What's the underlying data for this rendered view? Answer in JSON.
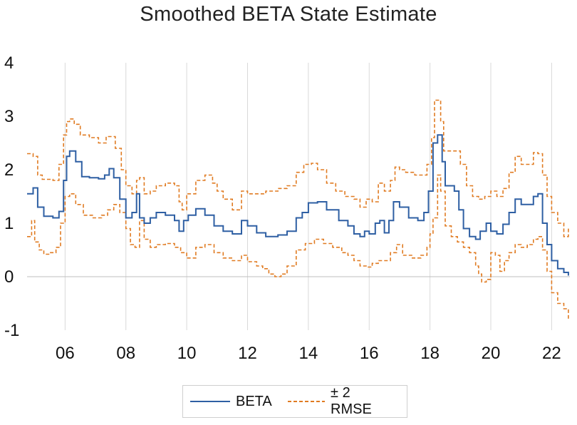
{
  "chart_data": {
    "type": "line",
    "title": "Smoothed BETA State Estimate",
    "xlabel": "",
    "ylabel": "",
    "xlim": [
      2004.75,
      2022.6
    ],
    "ylim": [
      -1,
      4
    ],
    "yticks": [
      "4",
      "3",
      "2",
      "1",
      "0",
      "-1"
    ],
    "xticks": [
      "06",
      "08",
      "10",
      "12",
      "14",
      "16",
      "18",
      "20",
      "22"
    ],
    "xtick_values": [
      2006,
      2008,
      2010,
      2012,
      2014,
      2016,
      2018,
      2020,
      2022
    ],
    "grid": "vertical",
    "legend": "bottom",
    "colors": {
      "beta": "#2e5fa3",
      "rmse": "#e07b22"
    },
    "series": [
      {
        "name": "BETA",
        "style": "solid",
        "x": [
          2004.75,
          2004.95,
          2005.1,
          2005.3,
          2005.6,
          2005.8,
          2005.95,
          2006.05,
          2006.15,
          2006.35,
          2006.55,
          2006.8,
          2007.1,
          2007.3,
          2007.45,
          2007.6,
          2007.8,
          2008.0,
          2008.2,
          2008.35,
          2008.45,
          2008.6,
          2008.8,
          2009.0,
          2009.3,
          2009.6,
          2009.75,
          2009.9,
          2010.05,
          2010.3,
          2010.6,
          2010.9,
          2011.2,
          2011.5,
          2011.8,
          2012.0,
          2012.3,
          2012.6,
          2013.0,
          2013.3,
          2013.6,
          2013.8,
          2014.0,
          2014.3,
          2014.6,
          2015.0,
          2015.3,
          2015.5,
          2015.7,
          2015.85,
          2016.0,
          2016.2,
          2016.35,
          2016.5,
          2016.65,
          2016.8,
          2017.0,
          2017.3,
          2017.6,
          2017.8,
          2017.95,
          2018.1,
          2018.25,
          2018.4,
          2018.5,
          2018.6,
          2018.8,
          2018.95,
          2019.1,
          2019.3,
          2019.5,
          2019.65,
          2019.85,
          2020.0,
          2020.2,
          2020.4,
          2020.6,
          2020.8,
          2021.0,
          2021.2,
          2021.4,
          2021.55,
          2021.7,
          2021.85,
          2022.0,
          2022.2,
          2022.4,
          2022.55
        ],
        "values": [
          1.55,
          1.66,
          1.3,
          1.13,
          1.1,
          1.22,
          1.8,
          2.25,
          2.35,
          2.15,
          1.87,
          1.85,
          1.83,
          1.9,
          2.02,
          1.85,
          1.45,
          1.1,
          1.2,
          1.55,
          1.1,
          1.0,
          1.1,
          1.2,
          1.15,
          1.05,
          0.85,
          1.05,
          1.15,
          1.27,
          1.15,
          0.95,
          0.85,
          0.8,
          1.05,
          0.95,
          0.82,
          0.75,
          0.78,
          0.85,
          1.1,
          1.2,
          1.38,
          1.4,
          1.25,
          1.05,
          0.95,
          0.8,
          0.75,
          0.85,
          0.8,
          1.0,
          1.05,
          0.82,
          1.05,
          1.4,
          1.3,
          1.1,
          1.05,
          1.2,
          1.6,
          2.5,
          2.65,
          2.15,
          1.7,
          1.7,
          1.6,
          1.25,
          0.9,
          0.75,
          0.7,
          0.85,
          1.0,
          0.85,
          0.8,
          0.98,
          1.2,
          1.45,
          1.35,
          1.35,
          1.5,
          1.55,
          1.0,
          0.6,
          0.3,
          0.15,
          0.08,
          0.02
        ]
      },
      {
        "name": "± 2 RMSE",
        "style": "dashed",
        "upper": {
          "x": [
            2004.75,
            2004.95,
            2005.1,
            2005.25,
            2005.4,
            2005.6,
            2005.8,
            2005.95,
            2006.05,
            2006.15,
            2006.3,
            2006.5,
            2006.8,
            2007.1,
            2007.35,
            2007.5,
            2007.65,
            2007.85,
            2008.0,
            2008.2,
            2008.35,
            2008.45,
            2008.6,
            2008.8,
            2009.0,
            2009.3,
            2009.6,
            2009.75,
            2009.85,
            2010.0,
            2010.3,
            2010.6,
            2010.85,
            2011.0,
            2011.2,
            2011.5,
            2011.8,
            2012.0,
            2012.3,
            2012.6,
            2013.0,
            2013.3,
            2013.6,
            2013.85,
            2014.1,
            2014.3,
            2014.6,
            2014.9,
            2015.2,
            2015.5,
            2015.7,
            2015.9,
            2016.1,
            2016.3,
            2016.5,
            2016.7,
            2016.85,
            2017.0,
            2017.2,
            2017.5,
            2017.7,
            2017.9,
            2018.05,
            2018.15,
            2018.25,
            2018.35,
            2018.45,
            2018.6,
            2018.8,
            2019.0,
            2019.2,
            2019.4,
            2019.6,
            2019.8,
            2020.0,
            2020.2,
            2020.4,
            2020.6,
            2020.8,
            2021.0,
            2021.2,
            2021.4,
            2021.55,
            2021.7,
            2021.85,
            2022.0,
            2022.2,
            2022.4,
            2022.55
          ],
          "values": [
            2.3,
            2.25,
            1.9,
            1.82,
            1.82,
            1.8,
            2.1,
            2.65,
            2.9,
            2.95,
            2.85,
            2.65,
            2.6,
            2.5,
            2.62,
            2.62,
            2.4,
            2.0,
            1.7,
            1.55,
            1.8,
            1.85,
            1.55,
            1.6,
            1.7,
            1.75,
            1.7,
            1.4,
            1.25,
            1.55,
            1.8,
            1.9,
            1.75,
            1.6,
            1.45,
            1.25,
            1.6,
            1.55,
            1.55,
            1.6,
            1.65,
            1.7,
            1.95,
            2.1,
            2.12,
            2.0,
            1.75,
            1.6,
            1.5,
            1.45,
            1.3,
            1.45,
            1.4,
            1.75,
            1.6,
            1.8,
            2.05,
            2.0,
            1.95,
            1.9,
            1.9,
            2.1,
            2.6,
            3.3,
            3.3,
            2.9,
            2.35,
            2.35,
            2.35,
            2.1,
            1.7,
            1.5,
            1.45,
            1.5,
            1.6,
            1.5,
            1.65,
            1.95,
            2.25,
            2.1,
            2.1,
            2.32,
            2.3,
            1.9,
            1.5,
            1.2,
            1.0,
            0.75,
            0.9
          ]
        },
        "lower": {
          "x": [
            2004.75,
            2004.9,
            2005.0,
            2005.15,
            2005.3,
            2005.5,
            2005.7,
            2005.85,
            2006.0,
            2006.15,
            2006.35,
            2006.6,
            2006.9,
            2007.2,
            2007.4,
            2007.6,
            2007.8,
            2008.0,
            2008.15,
            2008.3,
            2008.45,
            2008.6,
            2008.8,
            2009.0,
            2009.3,
            2009.6,
            2009.8,
            2010.0,
            2010.3,
            2010.6,
            2010.9,
            2011.2,
            2011.5,
            2011.8,
            2012.0,
            2012.3,
            2012.5,
            2012.7,
            2012.9,
            2013.1,
            2013.3,
            2013.6,
            2013.9,
            2014.2,
            2014.5,
            2014.8,
            2015.1,
            2015.3,
            2015.5,
            2015.7,
            2015.9,
            2016.1,
            2016.3,
            2016.5,
            2016.7,
            2016.9,
            2017.1,
            2017.4,
            2017.7,
            2017.9,
            2018.0,
            2018.1,
            2018.25,
            2018.35,
            2018.5,
            2018.7,
            2018.9,
            2019.1,
            2019.3,
            2019.5,
            2019.6,
            2019.7,
            2019.85,
            2020.0,
            2020.15,
            2020.3,
            2020.45,
            2020.6,
            2020.8,
            2021.0,
            2021.2,
            2021.4,
            2021.55,
            2021.7,
            2021.85,
            2022.0,
            2022.2,
            2022.4,
            2022.55
          ],
          "values": [
            0.75,
            1.05,
            0.65,
            0.5,
            0.42,
            0.45,
            0.55,
            1.0,
            1.5,
            1.55,
            1.35,
            1.15,
            1.1,
            1.15,
            1.25,
            1.35,
            1.2,
            0.9,
            0.6,
            0.55,
            1.05,
            0.7,
            0.55,
            0.6,
            0.62,
            0.55,
            0.45,
            0.35,
            0.55,
            0.6,
            0.45,
            0.35,
            0.3,
            0.4,
            0.28,
            0.2,
            0.15,
            0.05,
            0.0,
            0.05,
            0.2,
            0.5,
            0.62,
            0.7,
            0.62,
            0.55,
            0.45,
            0.4,
            0.3,
            0.2,
            0.18,
            0.25,
            0.3,
            0.3,
            0.45,
            0.6,
            0.4,
            0.35,
            0.4,
            0.55,
            0.8,
            1.1,
            1.9,
            1.6,
            0.95,
            0.75,
            0.65,
            0.55,
            0.45,
            0.2,
            0.05,
            -0.1,
            -0.05,
            0.45,
            0.4,
            0.1,
            0.3,
            0.45,
            0.6,
            0.55,
            0.6,
            0.7,
            0.75,
            0.5,
            0.1,
            -0.3,
            -0.5,
            -0.6,
            -0.8
          ]
        }
      }
    ]
  }
}
